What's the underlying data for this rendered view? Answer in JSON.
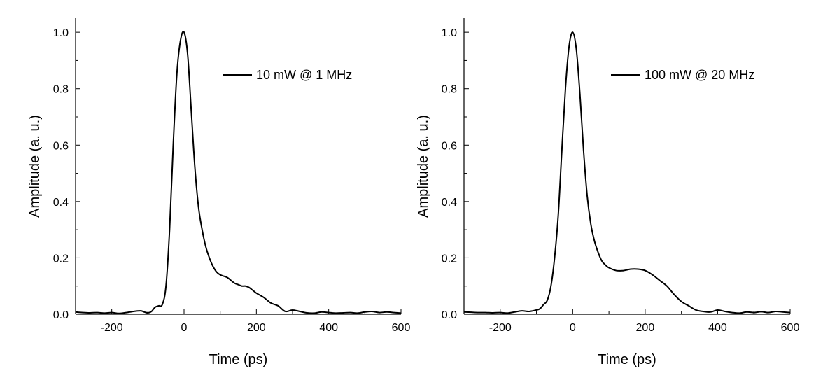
{
  "chart_data": [
    {
      "type": "line",
      "title": "",
      "xlabel": "Time (ps)",
      "ylabel": "Amplitude (a. u.)",
      "xlim": [
        -300,
        600
      ],
      "ylim": [
        0,
        1.05
      ],
      "xticks": [
        -200,
        0,
        200,
        400,
        600
      ],
      "xtick_labels": [
        "-200",
        "0",
        "200",
        "400",
        "600"
      ],
      "yticks": [
        0.0,
        0.2,
        0.4,
        0.6,
        0.8,
        1.0
      ],
      "ytick_labels": [
        "0.0",
        "0.2",
        "0.4",
        "0.6",
        "0.8",
        "1.0"
      ],
      "grid": false,
      "legend_position": "top-right",
      "series": [
        {
          "name": "10 mW @ 1 MHz",
          "color": "#000000",
          "x": [
            -300,
            -280,
            -260,
            -240,
            -220,
            -200,
            -180,
            -160,
            -140,
            -120,
            -110,
            -100,
            -90,
            -80,
            -70,
            -60,
            -50,
            -40,
            -30,
            -20,
            -10,
            0,
            10,
            20,
            30,
            40,
            50,
            60,
            70,
            80,
            90,
            100,
            110,
            120,
            130,
            140,
            150,
            160,
            170,
            180,
            190,
            200,
            220,
            240,
            260,
            280,
            300,
            320,
            340,
            360,
            380,
            400,
            420,
            440,
            460,
            480,
            500,
            520,
            540,
            560,
            580,
            600
          ],
          "y": [
            0.008,
            0.006,
            0.005,
            0.006,
            0.004,
            0.006,
            0.003,
            0.006,
            0.01,
            0.012,
            0.008,
            0.005,
            0.01,
            0.025,
            0.03,
            0.035,
            0.1,
            0.3,
            0.6,
            0.85,
            0.97,
            1.0,
            0.92,
            0.72,
            0.52,
            0.38,
            0.3,
            0.24,
            0.2,
            0.17,
            0.15,
            0.14,
            0.135,
            0.13,
            0.12,
            0.11,
            0.105,
            0.1,
            0.1,
            0.095,
            0.085,
            0.075,
            0.06,
            0.04,
            0.03,
            0.01,
            0.015,
            0.01,
            0.005,
            0.004,
            0.008,
            0.006,
            0.004,
            0.005,
            0.006,
            0.004,
            0.008,
            0.01,
            0.006,
            0.008,
            0.006,
            0.004
          ]
        }
      ]
    },
    {
      "type": "line",
      "title": "",
      "xlabel": "Time (ps)",
      "ylabel": "Amplitude (a. u.)",
      "xlim": [
        -300,
        600
      ],
      "ylim": [
        0,
        1.05
      ],
      "xticks": [
        -200,
        0,
        200,
        400,
        600
      ],
      "xtick_labels": [
        "-200",
        "0",
        "200",
        "400",
        "600"
      ],
      "yticks": [
        0.0,
        0.2,
        0.4,
        0.6,
        0.8,
        1.0
      ],
      "ytick_labels": [
        "0.0",
        "0.2",
        "0.4",
        "0.6",
        "0.8",
        "1.0"
      ],
      "grid": false,
      "legend_position": "top-right",
      "series": [
        {
          "name": "100 mW @ 20 MHz",
          "color": "#000000",
          "x": [
            -300,
            -280,
            -260,
            -240,
            -220,
            -200,
            -180,
            -160,
            -140,
            -120,
            -100,
            -90,
            -80,
            -70,
            -60,
            -50,
            -40,
            -30,
            -20,
            -10,
            0,
            10,
            20,
            30,
            40,
            50,
            60,
            70,
            80,
            90,
            100,
            120,
            140,
            160,
            180,
            200,
            220,
            240,
            260,
            280,
            300,
            320,
            340,
            360,
            380,
            400,
            420,
            440,
            460,
            480,
            500,
            520,
            540,
            560,
            580,
            600
          ],
          "y": [
            0.008,
            0.007,
            0.006,
            0.006,
            0.005,
            0.006,
            0.004,
            0.008,
            0.012,
            0.01,
            0.015,
            0.02,
            0.035,
            0.05,
            0.1,
            0.2,
            0.35,
            0.58,
            0.8,
            0.95,
            1.0,
            0.94,
            0.78,
            0.58,
            0.42,
            0.32,
            0.26,
            0.22,
            0.19,
            0.175,
            0.165,
            0.155,
            0.155,
            0.16,
            0.16,
            0.155,
            0.14,
            0.12,
            0.1,
            0.07,
            0.045,
            0.03,
            0.015,
            0.01,
            0.008,
            0.015,
            0.01,
            0.006,
            0.004,
            0.008,
            0.006,
            0.009,
            0.006,
            0.01,
            0.008,
            0.006
          ]
        }
      ]
    }
  ]
}
